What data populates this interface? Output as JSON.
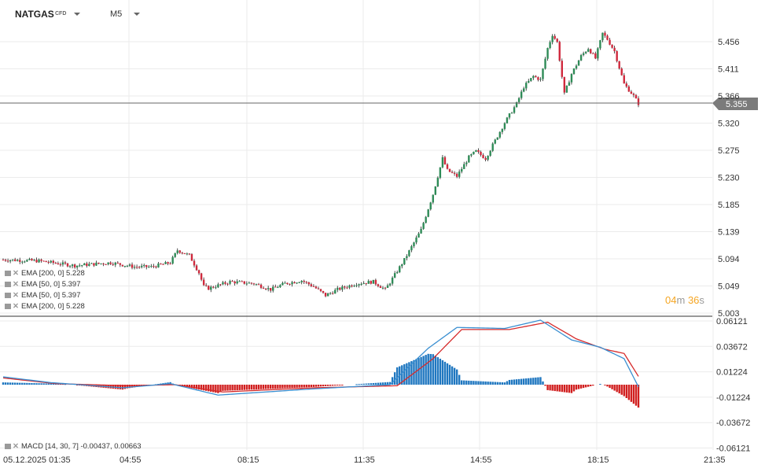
{
  "toolbar": {
    "symbol": "NATGAS",
    "instrument_type": "CFD",
    "timeframe": "M5"
  },
  "price_axis": {
    "labels": [
      "5.456",
      "5.411",
      "5.366",
      "5.320",
      "5.275",
      "5.230",
      "5.185",
      "5.139",
      "5.094",
      "5.049",
      "5.003"
    ]
  },
  "current_price": {
    "label": "5.355",
    "line_color": "#666666"
  },
  "time_axis": {
    "labels": [
      "05.12.2025  01:35",
      "04:55",
      "08:15",
      "11:35",
      "14:55",
      "18:15",
      "21:35"
    ]
  },
  "countdown": {
    "minutes": "04",
    "m_unit": "m",
    "seconds": "36",
    "s_unit": "s"
  },
  "indicators": [
    {
      "label": "EMA  [200,  0]  5.228"
    },
    {
      "label": "EMA  [50,  0]  5.397"
    },
    {
      "label": "EMA  [50,  0]  5.397"
    },
    {
      "label": "EMA  [200,  0]  5.228"
    }
  ],
  "macd_panel": {
    "legend": "MACD  [14,  30,  7]  -0.00437,   0.00663",
    "labels": [
      "0.06121",
      "0.03672",
      "0.01224",
      "-0.01224",
      "-0.03672",
      "-0.06121"
    ]
  },
  "colors": {
    "up": "#2e8b57",
    "down": "#d0293d",
    "macd_line": "#3a8fd1",
    "signal_line": "#d62b2b",
    "hist_pos": "#1f77c0",
    "hist_neg": "#d11f1f",
    "grid": "#ebebeb"
  },
  "chart_data": {
    "type": "candlestick",
    "title": "NATGAS M5",
    "ylim": [
      5.003,
      5.475
    ],
    "anchors": [
      [
        0,
        5.09
      ],
      [
        15,
        5.088
      ],
      [
        30,
        5.08
      ],
      [
        45,
        5.085
      ],
      [
        55,
        5.078
      ],
      [
        62,
        5.078
      ],
      [
        70,
        5.085
      ],
      [
        73,
        5.106
      ],
      [
        78,
        5.097
      ],
      [
        82,
        5.068
      ],
      [
        84,
        5.045
      ],
      [
        86,
        5.042
      ],
      [
        95,
        5.053
      ],
      [
        105,
        5.05
      ],
      [
        112,
        5.04
      ],
      [
        118,
        5.05
      ],
      [
        125,
        5.055
      ],
      [
        130,
        5.045
      ],
      [
        135,
        5.03
      ],
      [
        140,
        5.04
      ],
      [
        148,
        5.05
      ],
      [
        155,
        5.053
      ],
      [
        160,
        5.04
      ],
      [
        162,
        5.052
      ],
      [
        168,
        5.09
      ],
      [
        175,
        5.14
      ],
      [
        180,
        5.2
      ],
      [
        184,
        5.26
      ],
      [
        186,
        5.24
      ],
      [
        190,
        5.23
      ],
      [
        195,
        5.262
      ],
      [
        198,
        5.272
      ],
      [
        202,
        5.26
      ],
      [
        206,
        5.29
      ],
      [
        210,
        5.32
      ],
      [
        215,
        5.352
      ],
      [
        218,
        5.38
      ],
      [
        222,
        5.398
      ],
      [
        225,
        5.392
      ],
      [
        228,
        5.445
      ],
      [
        230,
        5.468
      ],
      [
        232,
        5.455
      ],
      [
        235,
        5.368
      ],
      [
        238,
        5.402
      ],
      [
        242,
        5.432
      ],
      [
        245,
        5.445
      ],
      [
        248,
        5.428
      ],
      [
        251,
        5.47
      ],
      [
        253,
        5.46
      ],
      [
        256,
        5.44
      ],
      [
        260,
        5.385
      ],
      [
        264,
        5.365
      ],
      [
        266,
        5.352
      ]
    ],
    "macd_anchors": [
      [
        0,
        0.0075
      ],
      [
        20,
        0.002
      ],
      [
        50,
        -0.003
      ],
      [
        70,
        0.001
      ],
      [
        90,
        -0.01
      ],
      [
        130,
        -0.004
      ],
      [
        162,
        0.0
      ],
      [
        178,
        0.035
      ],
      [
        190,
        0.055
      ],
      [
        210,
        0.054
      ],
      [
        225,
        0.062
      ],
      [
        238,
        0.043
      ],
      [
        250,
        0.036
      ],
      [
        260,
        0.025
      ],
      [
        266,
        -0.002
      ]
    ],
    "signal_anchors": [
      [
        0,
        0.0065
      ],
      [
        22,
        0.001
      ],
      [
        52,
        -0.001
      ],
      [
        72,
        0.0
      ],
      [
        92,
        -0.007
      ],
      [
        130,
        -0.003
      ],
      [
        165,
        -0.001
      ],
      [
        180,
        0.025
      ],
      [
        192,
        0.053
      ],
      [
        212,
        0.053
      ],
      [
        228,
        0.06
      ],
      [
        240,
        0.044
      ],
      [
        252,
        0.034
      ],
      [
        260,
        0.03
      ],
      [
        266,
        0.008
      ]
    ]
  }
}
